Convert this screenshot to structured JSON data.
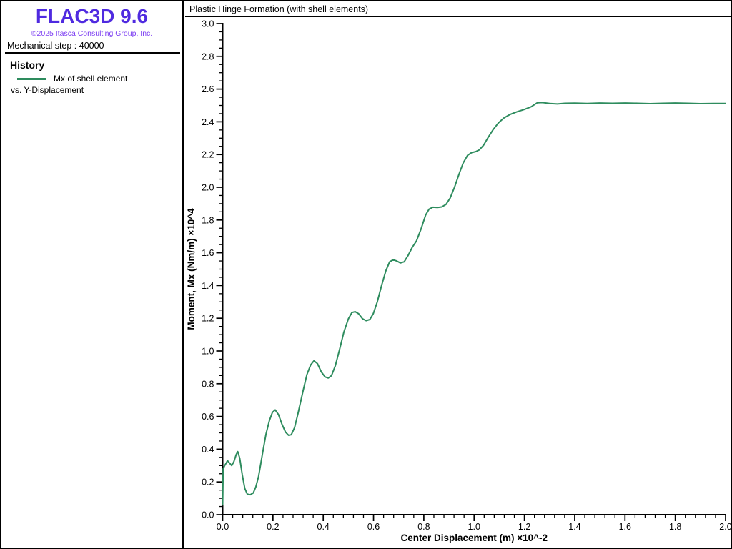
{
  "window": {
    "border_color": "#000000",
    "background": "#ffffff"
  },
  "sidebar": {
    "app_title": "FLAC3D 9.6",
    "app_title_color": "#4f2ae0",
    "copyright": "©2025 Itasca Consulting Group, Inc.",
    "copyright_color": "#7b3cf2",
    "step_label": "Mechanical step : 40000",
    "history_heading": "History",
    "legend": {
      "swatch_color": "#2e8c5e",
      "label_line1": "Mx of shell element",
      "label_line2": "vs. Y-Displacement"
    }
  },
  "chart_data": {
    "type": "line",
    "title": "Plastic Hinge Formation (with shell elements)",
    "xlabel": "Center Displacement (m) ×10^-2",
    "ylabel": "Moment, Mx (Nm/m) ×10^4",
    "xlim": [
      0.0,
      2.0
    ],
    "ylim": [
      0.0,
      3.0
    ],
    "x_major_step": 0.2,
    "x_minor_step": 0.04,
    "y_major_step": 0.2,
    "y_minor_step": 0.05,
    "grid": false,
    "legend_position": "left-panel",
    "axis_color": "#000000",
    "tick_label_font_px": 12.5,
    "series": [
      {
        "name": "Mx of shell element vs. Y-Displacement",
        "color": "#2e8c5e",
        "points": [
          [
            0.0,
            0.06
          ],
          [
            0.002,
            0.28
          ],
          [
            0.008,
            0.3
          ],
          [
            0.014,
            0.315
          ],
          [
            0.019,
            0.33
          ],
          [
            0.028,
            0.315
          ],
          [
            0.036,
            0.3
          ],
          [
            0.045,
            0.325
          ],
          [
            0.054,
            0.368
          ],
          [
            0.06,
            0.385
          ],
          [
            0.068,
            0.345
          ],
          [
            0.078,
            0.245
          ],
          [
            0.088,
            0.16
          ],
          [
            0.098,
            0.125
          ],
          [
            0.11,
            0.122
          ],
          [
            0.122,
            0.133
          ],
          [
            0.132,
            0.17
          ],
          [
            0.143,
            0.235
          ],
          [
            0.158,
            0.37
          ],
          [
            0.172,
            0.49
          ],
          [
            0.186,
            0.575
          ],
          [
            0.198,
            0.625
          ],
          [
            0.209,
            0.64
          ],
          [
            0.222,
            0.612
          ],
          [
            0.236,
            0.552
          ],
          [
            0.25,
            0.505
          ],
          [
            0.262,
            0.485
          ],
          [
            0.273,
            0.488
          ],
          [
            0.286,
            0.532
          ],
          [
            0.3,
            0.62
          ],
          [
            0.318,
            0.745
          ],
          [
            0.335,
            0.855
          ],
          [
            0.35,
            0.915
          ],
          [
            0.363,
            0.94
          ],
          [
            0.377,
            0.923
          ],
          [
            0.392,
            0.873
          ],
          [
            0.407,
            0.842
          ],
          [
            0.42,
            0.835
          ],
          [
            0.433,
            0.85
          ],
          [
            0.448,
            0.91
          ],
          [
            0.465,
            1.01
          ],
          [
            0.482,
            1.115
          ],
          [
            0.5,
            1.197
          ],
          [
            0.514,
            1.235
          ],
          [
            0.527,
            1.24
          ],
          [
            0.541,
            1.227
          ],
          [
            0.556,
            1.197
          ],
          [
            0.571,
            1.185
          ],
          [
            0.585,
            1.192
          ],
          [
            0.599,
            1.228
          ],
          [
            0.615,
            1.3
          ],
          [
            0.632,
            1.4
          ],
          [
            0.649,
            1.49
          ],
          [
            0.664,
            1.545
          ],
          [
            0.678,
            1.557
          ],
          [
            0.692,
            1.55
          ],
          [
            0.707,
            1.538
          ],
          [
            0.722,
            1.545
          ],
          [
            0.738,
            1.585
          ],
          [
            0.754,
            1.633
          ],
          [
            0.771,
            1.673
          ],
          [
            0.789,
            1.745
          ],
          [
            0.807,
            1.83
          ],
          [
            0.821,
            1.867
          ],
          [
            0.836,
            1.878
          ],
          [
            0.854,
            1.877
          ],
          [
            0.871,
            1.88
          ],
          [
            0.888,
            1.895
          ],
          [
            0.905,
            1.935
          ],
          [
            0.922,
            2.0
          ],
          [
            0.94,
            2.08
          ],
          [
            0.957,
            2.15
          ],
          [
            0.974,
            2.195
          ],
          [
            0.99,
            2.212
          ],
          [
            1.006,
            2.218
          ],
          [
            1.021,
            2.229
          ],
          [
            1.038,
            2.258
          ],
          [
            1.057,
            2.308
          ],
          [
            1.077,
            2.355
          ],
          [
            1.097,
            2.394
          ],
          [
            1.119,
            2.424
          ],
          [
            1.144,
            2.446
          ],
          [
            1.17,
            2.461
          ],
          [
            1.199,
            2.475
          ],
          [
            1.227,
            2.492
          ],
          [
            1.251,
            2.516
          ],
          [
            1.272,
            2.518
          ],
          [
            1.3,
            2.512
          ],
          [
            1.331,
            2.509
          ],
          [
            1.361,
            2.513
          ],
          [
            1.4,
            2.514
          ],
          [
            1.45,
            2.512
          ],
          [
            1.5,
            2.515
          ],
          [
            1.55,
            2.513
          ],
          [
            1.601,
            2.515
          ],
          [
            1.65,
            2.513
          ],
          [
            1.7,
            2.511
          ],
          [
            1.751,
            2.513
          ],
          [
            1.8,
            2.515
          ],
          [
            1.85,
            2.513
          ],
          [
            1.9,
            2.511
          ],
          [
            1.951,
            2.512
          ],
          [
            2.0,
            2.512
          ]
        ]
      }
    ]
  }
}
